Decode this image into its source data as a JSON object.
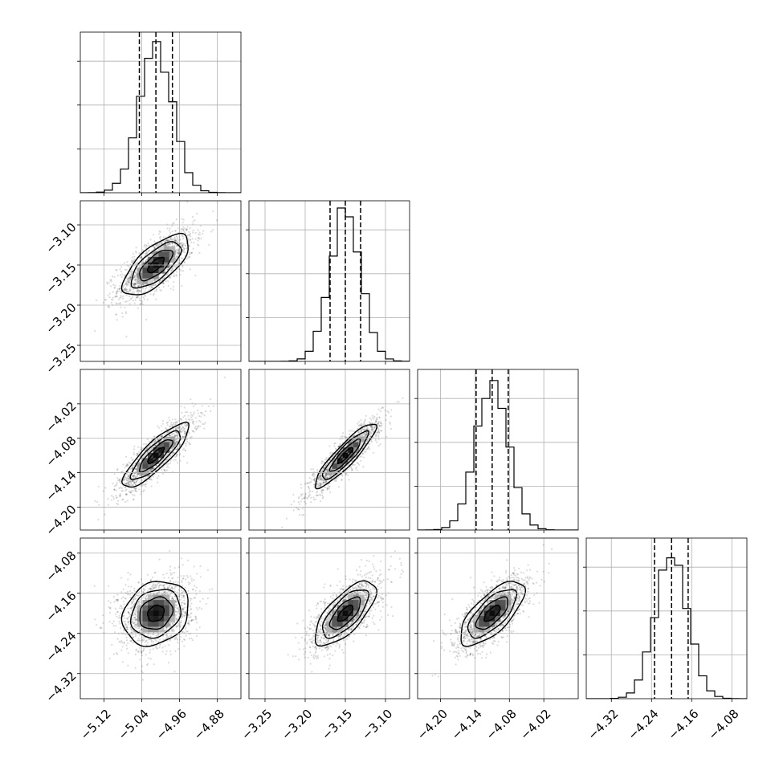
{
  "chart_data": {
    "type": "corner",
    "parameters": [
      {
        "mean": -5.01,
        "sd": 0.035,
        "range": [
          -5.17,
          -4.83
        ],
        "ticks": [
          -5.12,
          -5.04,
          -4.96,
          -4.88
        ],
        "tick_labels": [
          "−5.12",
          "−5.04",
          "−4.96",
          "−4.88"
        ],
        "quantiles": [
          -5.045,
          -5.01,
          -4.975
        ]
      },
      {
        "mean": -3.15,
        "sd": 0.019,
        "range": [
          -3.27,
          -3.07
        ],
        "ticks": [
          -3.25,
          -3.2,
          -3.15,
          -3.1
        ],
        "tick_labels": [
          "−3.25",
          "−3.20",
          "−3.15",
          "−3.10"
        ],
        "quantiles": [
          -3.169,
          -3.15,
          -3.131
        ]
      },
      {
        "mean": -4.11,
        "sd": 0.028,
        "range": [
          -4.24,
          -3.96
        ],
        "ticks": [
          -4.2,
          -4.14,
          -4.08,
          -4.02
        ],
        "tick_labels": [
          "−4.20",
          "−4.14",
          "−4.08",
          "−4.02"
        ],
        "quantiles": [
          -4.138,
          -4.11,
          -4.082
        ]
      },
      {
        "mean": -4.2,
        "sd": 0.032,
        "range": [
          -4.37,
          -4.05
        ],
        "ticks": [
          -4.32,
          -4.24,
          -4.16,
          -4.08
        ],
        "tick_labels": [
          "−4.32",
          "−4.24",
          "−4.16",
          "−4.08"
        ],
        "quantiles": [
          -4.234,
          -4.2,
          -4.167
        ]
      }
    ],
    "correlations": [
      [
        1.0,
        0.7,
        0.85,
        0.2
      ],
      [
        0.7,
        1.0,
        0.9,
        0.7
      ],
      [
        0.85,
        0.9,
        1.0,
        0.7
      ],
      [
        0.2,
        0.7,
        0.7,
        1.0
      ]
    ],
    "histogram_bins": 20,
    "quantile_levels": [
      0.16,
      0.5,
      0.84
    ],
    "contour_sigmas": [
      0.5,
      1.0,
      1.5,
      2.0
    ],
    "grid": true,
    "num_samples": 1500,
    "colors": {
      "line": "#000000",
      "grid": "#b0b0b0",
      "points": "#000000"
    }
  }
}
